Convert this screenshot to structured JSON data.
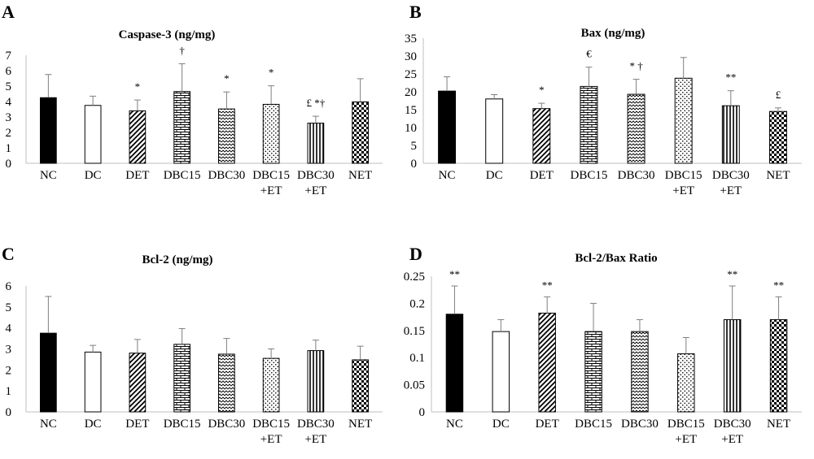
{
  "chart_data": [
    {
      "panel": "A",
      "type": "bar",
      "title": "Caspase-3 (ng/mg)",
      "categories": [
        "NC",
        "DC",
        "DET",
        "DBC15",
        "DBC30",
        "DBC15\n+ET",
        "DBC30\n+ET",
        "NET"
      ],
      "values": [
        4.25,
        3.75,
        3.4,
        4.65,
        3.52,
        3.82,
        2.6,
        3.98
      ],
      "errors": [
        1.5,
        0.6,
        0.7,
        1.8,
        1.1,
        1.2,
        0.45,
        1.5
      ],
      "patterns": [
        "solid",
        "white",
        "diag",
        "brick",
        "wave",
        "dots",
        "vlines",
        "checker"
      ],
      "annotations": [
        "",
        "",
        "*",
        "†",
        "*",
        "*",
        "£ *†",
        ""
      ],
      "ylim": [
        0,
        7
      ],
      "yticks": [
        "0",
        "1",
        "2",
        "3",
        "4",
        "5",
        "6",
        "7"
      ],
      "xlabel": "",
      "ylabel": ""
    },
    {
      "panel": "B",
      "type": "bar",
      "title": "Bax (ng/mg)",
      "categories": [
        "NC",
        "DC",
        "DET",
        "DBC15",
        "DBC30",
        "DBC15\n+ET",
        "DBC30\n+ET",
        "NET"
      ],
      "values": [
        20.2,
        18.0,
        15.3,
        21.5,
        19.3,
        23.8,
        16.1,
        14.5
      ],
      "errors": [
        4.0,
        1.2,
        1.5,
        5.4,
        4.2,
        5.8,
        4.2,
        1.0
      ],
      "patterns": [
        "solid",
        "white",
        "diag",
        "brick",
        "wave",
        "dots",
        "vlines",
        "checker"
      ],
      "annotations": [
        "",
        "",
        "*",
        "€",
        "* †",
        "",
        "**",
        "£"
      ],
      "ylim": [
        0,
        35
      ],
      "yticks": [
        "0",
        "5",
        "10",
        "15",
        "20",
        "25",
        "30",
        "35"
      ],
      "xlabel": "",
      "ylabel": ""
    },
    {
      "panel": "C",
      "type": "bar",
      "title": "Bcl-2 (ng/mg)",
      "categories": [
        "NC",
        "DC",
        "DET",
        "DBC15",
        "DBC30",
        "DBC15\n+ET",
        "DBC30\n+ET",
        "NET"
      ],
      "values": [
        3.75,
        2.85,
        2.8,
        3.22,
        2.75,
        2.55,
        2.92,
        2.48
      ],
      "errors": [
        1.75,
        0.32,
        0.65,
        0.75,
        0.75,
        0.45,
        0.5,
        0.65
      ],
      "patterns": [
        "solid",
        "white",
        "diag",
        "brick",
        "wave",
        "dots",
        "vlines",
        "checker"
      ],
      "annotations": [
        "",
        "",
        "",
        "",
        "",
        "",
        "",
        ""
      ],
      "ylim": [
        0,
        6
      ],
      "yticks": [
        "0",
        "1",
        "2",
        "3",
        "4",
        "5",
        "6"
      ],
      "xlabel": "",
      "ylabel": ""
    },
    {
      "panel": "D",
      "type": "bar",
      "title": "Bcl-2/Bax Ratio",
      "categories": [
        "NC",
        "DC",
        "DET",
        "DBC15",
        "DBC30",
        "DBC15\n+ET",
        "DBC30\n+ET",
        "NET"
      ],
      "values": [
        0.18,
        0.148,
        0.182,
        0.148,
        0.148,
        0.107,
        0.17,
        0.17
      ],
      "errors": [
        0.052,
        0.022,
        0.03,
        0.052,
        0.022,
        0.03,
        0.062,
        0.042
      ],
      "patterns": [
        "solid",
        "white",
        "diag",
        "brick",
        "wave",
        "dots",
        "vlines",
        "checker"
      ],
      "annotations": [
        "**",
        "",
        "**",
        "",
        "",
        "",
        "**",
        "**"
      ],
      "ylim": [
        0,
        0.25
      ],
      "yticks": [
        "0",
        "0.05",
        "0.1",
        "0.15",
        "0.2",
        "0.25"
      ],
      "xlabel": "",
      "ylabel": ""
    }
  ]
}
